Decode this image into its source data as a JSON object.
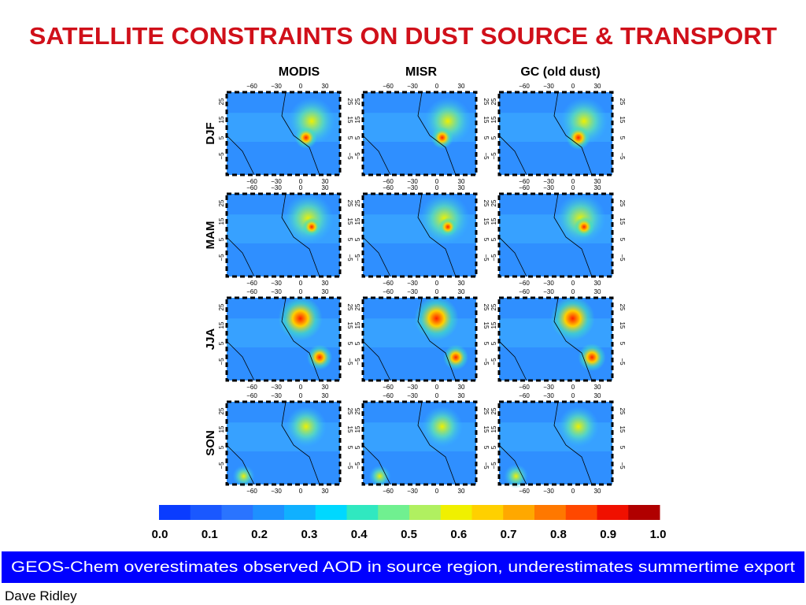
{
  "header": {
    "title": "SATELLITE CONSTRAINTS ON DUST SOURCE & TRANSPORT"
  },
  "columns": [
    "MODIS",
    "MISR",
    "GC (old dust)"
  ],
  "rows": [
    "DJF",
    "MAM",
    "JJA",
    "SON"
  ],
  "panel_ticks": {
    "x": [
      "−60",
      "−30",
      "0",
      "30"
    ],
    "y": [
      "25",
      "15",
      "5",
      "−5"
    ]
  },
  "colorbar": {
    "labels": [
      "0.0",
      "0.1",
      "0.2",
      "0.3",
      "0.4",
      "0.5",
      "0.6",
      "0.7",
      "0.8",
      "0.9",
      "1.0"
    ]
  },
  "footer": {
    "note": "GEOS-Chem overestimates observed AOD in source region, underestimates summertime export",
    "author": "Dave Ridley"
  }
}
